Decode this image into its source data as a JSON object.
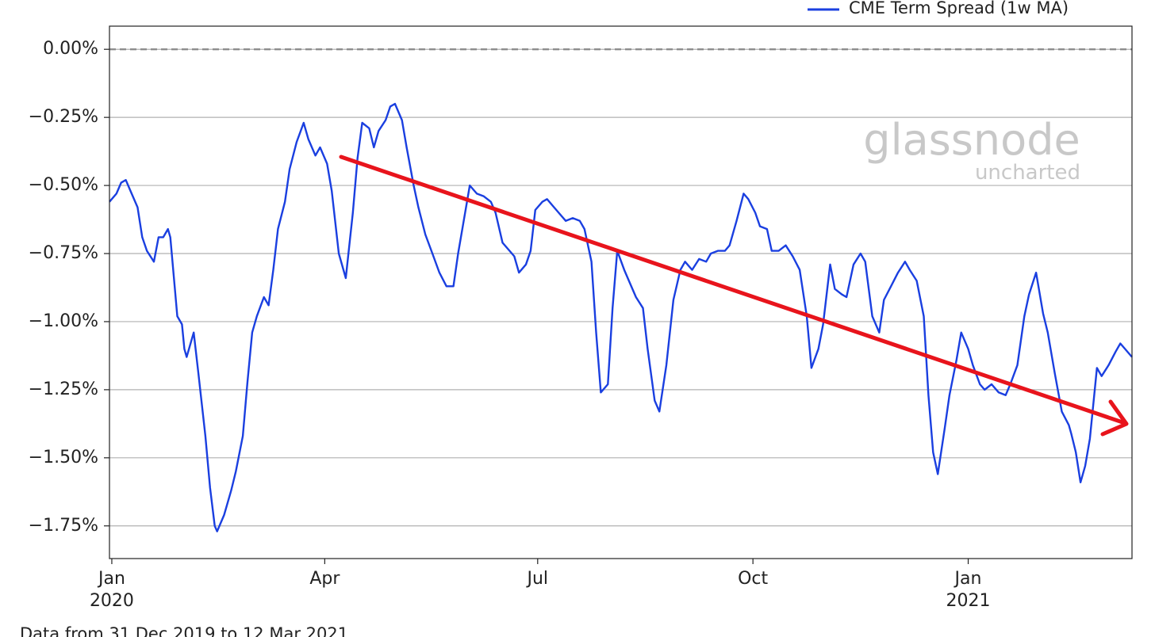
{
  "chart_data": {
    "type": "line",
    "note_footer": "Data from 31 Dec 2019 to 12 Mar 2021",
    "watermark": [
      "glassnode",
      "uncharted"
    ],
    "x": [
      "2019-12-31",
      "2020-01-03",
      "2020-01-05",
      "2020-01-07",
      "2020-01-09",
      "2020-01-12",
      "2020-01-14",
      "2020-01-16",
      "2020-01-19",
      "2020-01-21",
      "2020-01-23",
      "2020-01-25",
      "2020-01-26",
      "2020-01-29",
      "2020-01-31",
      "2020-02-01",
      "2020-02-02",
      "2020-02-05",
      "2020-02-07",
      "2020-02-10",
      "2020-02-12",
      "2020-02-14",
      "2020-02-15",
      "2020-02-18",
      "2020-02-21",
      "2020-02-23",
      "2020-02-26",
      "2020-02-28",
      "2020-03-01",
      "2020-03-03",
      "2020-03-06",
      "2020-03-08",
      "2020-03-10",
      "2020-03-12",
      "2020-03-15",
      "2020-03-17",
      "2020-03-20",
      "2020-03-23",
      "2020-03-25",
      "2020-03-28",
      "2020-03-30",
      "2020-04-02",
      "2020-04-04",
      "2020-04-07",
      "2020-04-10",
      "2020-04-13",
      "2020-04-15",
      "2020-04-17",
      "2020-04-20",
      "2020-04-22",
      "2020-04-24",
      "2020-04-27",
      "2020-04-29",
      "2020-05-01",
      "2020-05-04",
      "2020-05-06",
      "2020-05-09",
      "2020-05-11",
      "2020-05-14",
      "2020-05-17",
      "2020-05-20",
      "2020-05-23",
      "2020-05-26",
      "2020-05-28",
      "2020-05-30",
      "2020-06-02",
      "2020-06-05",
      "2020-06-08",
      "2020-06-11",
      "2020-06-13",
      "2020-06-16",
      "2020-06-19",
      "2020-06-21",
      "2020-06-23",
      "2020-06-26",
      "2020-06-28",
      "2020-06-30",
      "2020-07-03",
      "2020-07-05",
      "2020-07-08",
      "2020-07-10",
      "2020-07-13",
      "2020-07-16",
      "2020-07-19",
      "2020-07-21",
      "2020-07-24",
      "2020-07-26",
      "2020-07-28",
      "2020-07-31",
      "2020-08-02",
      "2020-08-04",
      "2020-08-07",
      "2020-08-09",
      "2020-08-12",
      "2020-08-15",
      "2020-08-17",
      "2020-08-20",
      "2020-08-22",
      "2020-08-25",
      "2020-08-28",
      "2020-08-31",
      "2020-09-02",
      "2020-09-05",
      "2020-09-08",
      "2020-09-11",
      "2020-09-13",
      "2020-09-16",
      "2020-09-19",
      "2020-09-21",
      "2020-09-24",
      "2020-09-27",
      "2020-09-29",
      "2020-10-02",
      "2020-10-04",
      "2020-10-07",
      "2020-10-09",
      "2020-10-12",
      "2020-10-15",
      "2020-10-18",
      "2020-10-21",
      "2020-10-24",
      "2020-10-26",
      "2020-10-29",
      "2020-10-31",
      "2020-11-03",
      "2020-11-05",
      "2020-11-08",
      "2020-11-10",
      "2020-11-13",
      "2020-11-16",
      "2020-11-18",
      "2020-11-21",
      "2020-11-24",
      "2020-11-26",
      "2020-11-29",
      "2020-12-02",
      "2020-12-05",
      "2020-12-07",
      "2020-12-10",
      "2020-12-13",
      "2020-12-15",
      "2020-12-17",
      "2020-12-19",
      "2020-12-22",
      "2020-12-24",
      "2020-12-27",
      "2020-12-29",
      "2021-01-01",
      "2021-01-03",
      "2021-01-06",
      "2021-01-08",
      "2021-01-11",
      "2021-01-14",
      "2021-01-17",
      "2021-01-19",
      "2021-01-22",
      "2021-01-25",
      "2021-01-27",
      "2021-01-30",
      "2021-02-02",
      "2021-02-04",
      "2021-02-07",
      "2021-02-10",
      "2021-02-13",
      "2021-02-14",
      "2021-02-16",
      "2021-02-18",
      "2021-02-20",
      "2021-02-22",
      "2021-02-25",
      "2021-02-27",
      "2021-03-02",
      "2021-03-05",
      "2021-03-07",
      "2021-03-12"
    ],
    "series": [
      {
        "name": "CME Term Spread (1w MA)",
        "color": "#1a3fe0",
        "values": [
          -0.56,
          -0.53,
          -0.49,
          -0.48,
          -0.52,
          -0.58,
          -0.69,
          -0.74,
          -0.78,
          -0.69,
          -0.69,
          -0.66,
          -0.69,
          -0.98,
          -1.01,
          -1.1,
          -1.13,
          -1.04,
          -1.19,
          -1.42,
          -1.61,
          -1.75,
          -1.77,
          -1.71,
          -1.62,
          -1.55,
          -1.42,
          -1.22,
          -1.04,
          -0.98,
          -0.91,
          -0.94,
          -0.81,
          -0.66,
          -0.56,
          -0.44,
          -0.34,
          -0.27,
          -0.33,
          -0.39,
          -0.36,
          -0.42,
          -0.52,
          -0.75,
          -0.84,
          -0.6,
          -0.4,
          -0.27,
          -0.29,
          -0.36,
          -0.3,
          -0.26,
          -0.21,
          -0.2,
          -0.26,
          -0.36,
          -0.5,
          -0.58,
          -0.68,
          -0.75,
          -0.82,
          -0.87,
          -0.87,
          -0.75,
          -0.65,
          -0.5,
          -0.53,
          -0.54,
          -0.56,
          -0.6,
          -0.71,
          -0.74,
          -0.76,
          -0.82,
          -0.79,
          -0.74,
          -0.59,
          -0.56,
          -0.55,
          -0.58,
          -0.6,
          -0.63,
          -0.62,
          -0.63,
          -0.66,
          -0.78,
          -1.04,
          -1.26,
          -1.23,
          -0.95,
          -0.74,
          -0.81,
          -0.85,
          -0.91,
          -0.95,
          -1.1,
          -1.29,
          -1.33,
          -1.16,
          -0.92,
          -0.81,
          -0.78,
          -0.81,
          -0.77,
          -0.78,
          -0.75,
          -0.74,
          -0.74,
          -0.72,
          -0.63,
          -0.53,
          -0.55,
          -0.6,
          -0.65,
          -0.66,
          -0.74,
          -0.74,
          -0.72,
          -0.76,
          -0.81,
          -0.98,
          -1.17,
          -1.1,
          -1.01,
          -0.79,
          -0.88,
          -0.9,
          -0.91,
          -0.79,
          -0.75,
          -0.78,
          -0.98,
          -1.04,
          -0.92,
          -0.87,
          -0.82,
          -0.78,
          -0.81,
          -0.85,
          -0.98,
          -1.27,
          -1.48,
          -1.56,
          -1.39,
          -1.27,
          -1.14,
          -1.04,
          -1.1,
          -1.16,
          -1.23,
          -1.25,
          -1.23,
          -1.26,
          -1.27,
          -1.23,
          -1.16,
          -0.98,
          -0.9,
          -0.82,
          -0.97,
          -1.04,
          -1.19,
          -1.33,
          -1.38,
          -1.41,
          -1.48,
          -1.59,
          -1.53,
          -1.43,
          -1.17,
          -1.2,
          -1.16,
          -1.11,
          -1.08,
          -1.13
        ]
      }
    ],
    "xlim": [
      "2019-12-31",
      "2021-03-12"
    ],
    "xticks": [
      {
        "value": "2020-01-01",
        "label": "Jan\n2020"
      },
      {
        "value": "2020-04-01",
        "label": "Apr"
      },
      {
        "value": "2020-07-01",
        "label": "Jul"
      },
      {
        "value": "2020-10-01",
        "label": "Oct"
      },
      {
        "value": "2021-01-01",
        "label": "Jan\n2021"
      }
    ],
    "ylim": [
      -1.87,
      0.085
    ],
    "yticks": [
      {
        "value": 0,
        "label": "0.00%"
      },
      {
        "value": -0.25,
        "label": "−0.25%"
      },
      {
        "value": -0.5,
        "label": "−0.50%"
      },
      {
        "value": -0.75,
        "label": "−0.75%"
      },
      {
        "value": -1,
        "label": "−1.00%"
      },
      {
        "value": -1.25,
        "label": "−1.25%"
      },
      {
        "value": -1.5,
        "label": "−1.50%"
      },
      {
        "value": -1.75,
        "label": "−1.75%"
      }
    ],
    "reference_line": 0,
    "grid": true,
    "legend": "upper right"
  }
}
